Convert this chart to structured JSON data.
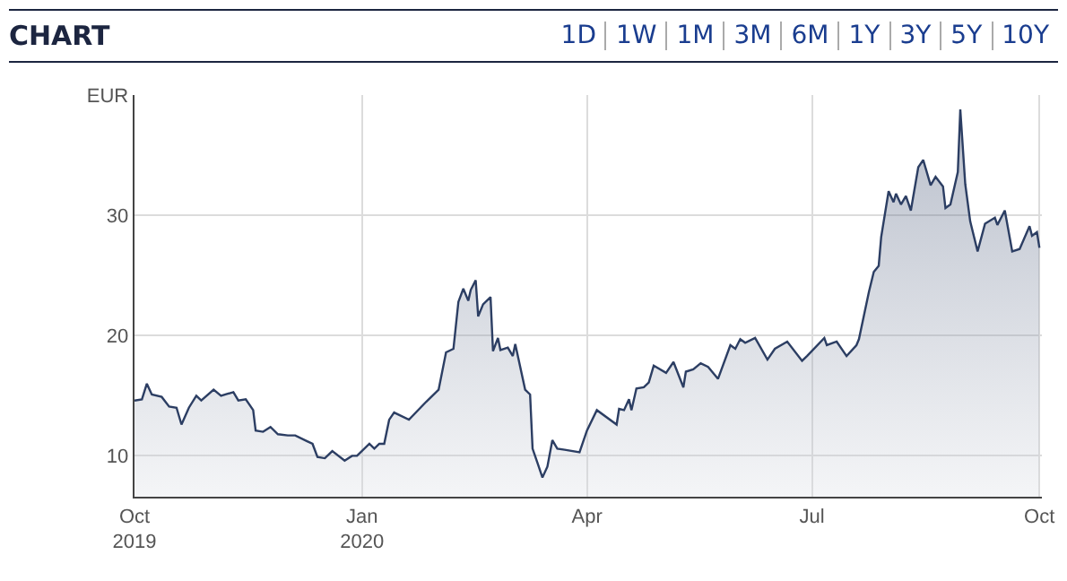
{
  "chart_data": {
    "type": "area",
    "title": "CHART",
    "annotations": [
      "1D",
      "1W",
      "1M",
      "3M",
      "6M",
      "1Y",
      "3Y",
      "5Y",
      "10Y"
    ],
    "x": [
      "2019-10-01",
      "2019-10-04",
      "2019-10-06",
      "2019-10-08",
      "2019-10-12",
      "2019-10-15",
      "2019-10-18",
      "2019-10-20",
      "2019-10-23",
      "2019-10-26",
      "2019-10-28",
      "2019-11-02",
      "2019-11-05",
      "2019-11-10",
      "2019-11-12",
      "2019-11-15",
      "2019-11-18",
      "2019-11-19",
      "2019-11-22",
      "2019-11-25",
      "2019-11-28",
      "2019-12-02",
      "2019-12-05",
      "2019-12-10",
      "2019-12-12",
      "2019-12-14",
      "2019-12-17",
      "2019-12-20",
      "2019-12-25",
      "2019-12-28",
      "2019-12-30",
      "2020-01-04",
      "2020-01-06",
      "2020-01-08",
      "2020-01-10",
      "2020-01-12",
      "2020-01-14",
      "2020-01-20",
      "2020-01-27",
      "2020-02-01",
      "2020-02-04",
      "2020-02-07",
      "2020-02-09",
      "2020-02-11",
      "2020-02-13",
      "2020-02-14",
      "2020-02-16",
      "2020-02-17",
      "2020-02-19",
      "2020-02-22",
      "2020-02-23",
      "2020-02-25",
      "2020-02-26",
      "2020-02-29",
      "2020-03-02",
      "2020-03-03",
      "2020-03-07",
      "2020-03-09",
      "2020-03-10",
      "2020-03-12",
      "2020-03-14",
      "2020-03-16",
      "2020-03-18",
      "2020-03-20",
      "2020-03-23",
      "2020-03-29",
      "2020-04-01",
      "2020-04-05",
      "2020-04-13",
      "2020-04-14",
      "2020-04-16",
      "2020-04-18",
      "2020-04-19",
      "2020-04-21",
      "2020-04-24",
      "2020-04-26",
      "2020-04-28",
      "2020-05-03",
      "2020-05-06",
      "2020-05-10",
      "2020-05-11",
      "2020-05-14",
      "2020-05-17",
      "2020-05-20",
      "2020-05-24",
      "2020-05-29",
      "2020-05-31",
      "2020-06-02",
      "2020-06-04",
      "2020-06-08",
      "2020-06-13",
      "2020-06-16",
      "2020-06-21",
      "2020-06-27",
      "2020-06-29",
      "2020-07-06",
      "2020-07-07",
      "2020-07-11",
      "2020-07-15",
      "2020-07-19",
      "2020-07-20",
      "2020-07-24",
      "2020-07-26",
      "2020-07-28",
      "2020-07-29",
      "2020-08-01",
      "2020-08-03",
      "2020-08-04",
      "2020-08-06",
      "2020-08-08",
      "2020-08-10",
      "2020-08-13",
      "2020-08-15",
      "2020-08-18",
      "2020-08-20",
      "2020-08-23",
      "2020-08-24",
      "2020-08-26",
      "2020-08-29",
      "2020-08-30",
      "2020-09-01",
      "2020-09-03",
      "2020-09-06",
      "2020-09-09",
      "2020-09-13",
      "2020-09-14",
      "2020-09-17",
      "2020-09-20",
      "2020-09-23",
      "2020-09-27",
      "2020-09-28",
      "2020-09-30",
      "2020-10-01"
    ],
    "series": [
      {
        "color": "#2c3e63",
        "values": [
          14.6,
          14.7,
          16.0,
          15.1,
          14.9,
          14.1,
          14.0,
          12.6,
          14.0,
          15.0,
          14.6,
          15.5,
          15.0,
          15.3,
          14.6,
          14.7,
          13.8,
          12.1,
          12.0,
          12.4,
          11.8,
          11.7,
          11.7,
          11.2,
          11.0,
          9.9,
          9.8,
          10.4,
          9.6,
          10.0,
          10.0,
          11.0,
          10.6,
          11.0,
          11.0,
          13.0,
          13.6,
          13.0,
          14.5,
          15.5,
          18.6,
          18.9,
          22.8,
          23.9,
          22.9,
          23.8,
          24.6,
          21.6,
          22.6,
          23.2,
          18.7,
          19.8,
          18.8,
          19.0,
          18.3,
          19.3,
          15.5,
          15.1,
          10.6,
          9.4,
          8.2,
          9.1,
          11.3,
          10.6,
          10.5,
          10.3,
          12.1,
          13.8,
          12.6,
          13.9,
          13.8,
          14.7,
          13.8,
          15.6,
          15.7,
          16.1,
          17.5,
          16.9,
          17.8,
          15.7,
          17.0,
          17.2,
          17.7,
          17.4,
          16.4,
          19.2,
          18.9,
          19.7,
          19.4,
          19.8,
          18.0,
          18.9,
          19.5,
          17.9,
          18.3,
          19.8,
          19.2,
          19.5,
          18.3,
          19.2,
          19.7,
          23.6,
          25.3,
          25.8,
          28.2,
          32.0,
          31.1,
          31.8,
          30.9,
          31.6,
          30.4,
          34.0,
          34.6,
          32.5,
          33.2,
          32.4,
          30.6,
          30.9,
          33.6,
          38.8,
          32.6,
          29.5,
          27.0,
          29.3,
          29.8,
          29.2,
          30.4,
          27.0,
          27.2,
          29.1,
          28.3,
          28.6,
          27.3
        ]
      }
    ],
    "xlim": [
      "2019-10-01",
      "2020-10-02"
    ],
    "xticks": [
      {
        "value": "2019-10-01",
        "label": "Oct\n2019"
      },
      {
        "value": "2020-01-01",
        "label": "Jan\n2020"
      },
      {
        "value": "2020-04-01",
        "label": "Apr"
      },
      {
        "value": "2020-07-01",
        "label": "Jul"
      },
      {
        "value": "2020-10-01",
        "label": "Oct"
      }
    ],
    "ylim": [
      6.6,
      40
    ],
    "yticks": [
      10,
      20,
      30,
      {
        "value": 40,
        "label": "EUR"
      }
    ],
    "grid": true
  }
}
